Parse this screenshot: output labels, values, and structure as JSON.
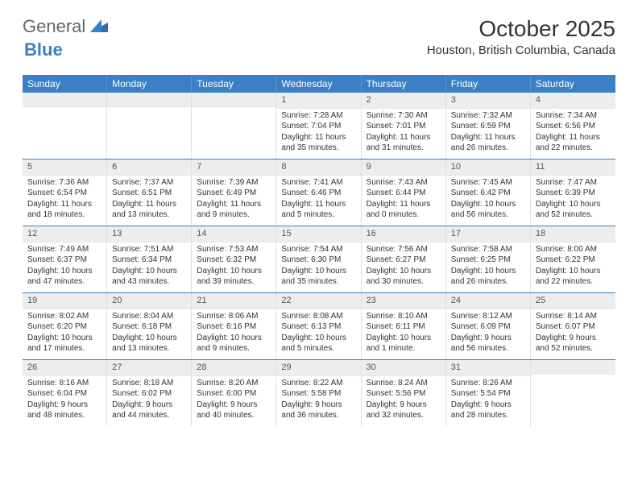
{
  "logo": {
    "part1": "General",
    "part2": "Blue"
  },
  "title": "October 2025",
  "location": "Houston, British Columbia, Canada",
  "header_bg": "#3b7fc4",
  "daynum_bg": "#ededed",
  "dayNames": [
    "Sunday",
    "Monday",
    "Tuesday",
    "Wednesday",
    "Thursday",
    "Friday",
    "Saturday"
  ],
  "weeks": [
    [
      {
        "n": "",
        "sr": "",
        "ss": "",
        "dl": ""
      },
      {
        "n": "",
        "sr": "",
        "ss": "",
        "dl": ""
      },
      {
        "n": "",
        "sr": "",
        "ss": "",
        "dl": ""
      },
      {
        "n": "1",
        "sr": "Sunrise: 7:28 AM",
        "ss": "Sunset: 7:04 PM",
        "dl": "Daylight: 11 hours and 35 minutes."
      },
      {
        "n": "2",
        "sr": "Sunrise: 7:30 AM",
        "ss": "Sunset: 7:01 PM",
        "dl": "Daylight: 11 hours and 31 minutes."
      },
      {
        "n": "3",
        "sr": "Sunrise: 7:32 AM",
        "ss": "Sunset: 6:59 PM",
        "dl": "Daylight: 11 hours and 26 minutes."
      },
      {
        "n": "4",
        "sr": "Sunrise: 7:34 AM",
        "ss": "Sunset: 6:56 PM",
        "dl": "Daylight: 11 hours and 22 minutes."
      }
    ],
    [
      {
        "n": "5",
        "sr": "Sunrise: 7:36 AM",
        "ss": "Sunset: 6:54 PM",
        "dl": "Daylight: 11 hours and 18 minutes."
      },
      {
        "n": "6",
        "sr": "Sunrise: 7:37 AM",
        "ss": "Sunset: 6:51 PM",
        "dl": "Daylight: 11 hours and 13 minutes."
      },
      {
        "n": "7",
        "sr": "Sunrise: 7:39 AM",
        "ss": "Sunset: 6:49 PM",
        "dl": "Daylight: 11 hours and 9 minutes."
      },
      {
        "n": "8",
        "sr": "Sunrise: 7:41 AM",
        "ss": "Sunset: 6:46 PM",
        "dl": "Daylight: 11 hours and 5 minutes."
      },
      {
        "n": "9",
        "sr": "Sunrise: 7:43 AM",
        "ss": "Sunset: 6:44 PM",
        "dl": "Daylight: 11 hours and 0 minutes."
      },
      {
        "n": "10",
        "sr": "Sunrise: 7:45 AM",
        "ss": "Sunset: 6:42 PM",
        "dl": "Daylight: 10 hours and 56 minutes."
      },
      {
        "n": "11",
        "sr": "Sunrise: 7:47 AM",
        "ss": "Sunset: 6:39 PM",
        "dl": "Daylight: 10 hours and 52 minutes."
      }
    ],
    [
      {
        "n": "12",
        "sr": "Sunrise: 7:49 AM",
        "ss": "Sunset: 6:37 PM",
        "dl": "Daylight: 10 hours and 47 minutes."
      },
      {
        "n": "13",
        "sr": "Sunrise: 7:51 AM",
        "ss": "Sunset: 6:34 PM",
        "dl": "Daylight: 10 hours and 43 minutes."
      },
      {
        "n": "14",
        "sr": "Sunrise: 7:53 AM",
        "ss": "Sunset: 6:32 PM",
        "dl": "Daylight: 10 hours and 39 minutes."
      },
      {
        "n": "15",
        "sr": "Sunrise: 7:54 AM",
        "ss": "Sunset: 6:30 PM",
        "dl": "Daylight: 10 hours and 35 minutes."
      },
      {
        "n": "16",
        "sr": "Sunrise: 7:56 AM",
        "ss": "Sunset: 6:27 PM",
        "dl": "Daylight: 10 hours and 30 minutes."
      },
      {
        "n": "17",
        "sr": "Sunrise: 7:58 AM",
        "ss": "Sunset: 6:25 PM",
        "dl": "Daylight: 10 hours and 26 minutes."
      },
      {
        "n": "18",
        "sr": "Sunrise: 8:00 AM",
        "ss": "Sunset: 6:22 PM",
        "dl": "Daylight: 10 hours and 22 minutes."
      }
    ],
    [
      {
        "n": "19",
        "sr": "Sunrise: 8:02 AM",
        "ss": "Sunset: 6:20 PM",
        "dl": "Daylight: 10 hours and 17 minutes."
      },
      {
        "n": "20",
        "sr": "Sunrise: 8:04 AM",
        "ss": "Sunset: 6:18 PM",
        "dl": "Daylight: 10 hours and 13 minutes."
      },
      {
        "n": "21",
        "sr": "Sunrise: 8:06 AM",
        "ss": "Sunset: 6:16 PM",
        "dl": "Daylight: 10 hours and 9 minutes."
      },
      {
        "n": "22",
        "sr": "Sunrise: 8:08 AM",
        "ss": "Sunset: 6:13 PM",
        "dl": "Daylight: 10 hours and 5 minutes."
      },
      {
        "n": "23",
        "sr": "Sunrise: 8:10 AM",
        "ss": "Sunset: 6:11 PM",
        "dl": "Daylight: 10 hours and 1 minute."
      },
      {
        "n": "24",
        "sr": "Sunrise: 8:12 AM",
        "ss": "Sunset: 6:09 PM",
        "dl": "Daylight: 9 hours and 56 minutes."
      },
      {
        "n": "25",
        "sr": "Sunrise: 8:14 AM",
        "ss": "Sunset: 6:07 PM",
        "dl": "Daylight: 9 hours and 52 minutes."
      }
    ],
    [
      {
        "n": "26",
        "sr": "Sunrise: 8:16 AM",
        "ss": "Sunset: 6:04 PM",
        "dl": "Daylight: 9 hours and 48 minutes."
      },
      {
        "n": "27",
        "sr": "Sunrise: 8:18 AM",
        "ss": "Sunset: 6:02 PM",
        "dl": "Daylight: 9 hours and 44 minutes."
      },
      {
        "n": "28",
        "sr": "Sunrise: 8:20 AM",
        "ss": "Sunset: 6:00 PM",
        "dl": "Daylight: 9 hours and 40 minutes."
      },
      {
        "n": "29",
        "sr": "Sunrise: 8:22 AM",
        "ss": "Sunset: 5:58 PM",
        "dl": "Daylight: 9 hours and 36 minutes."
      },
      {
        "n": "30",
        "sr": "Sunrise: 8:24 AM",
        "ss": "Sunset: 5:56 PM",
        "dl": "Daylight: 9 hours and 32 minutes."
      },
      {
        "n": "31",
        "sr": "Sunrise: 8:26 AM",
        "ss": "Sunset: 5:54 PM",
        "dl": "Daylight: 9 hours and 28 minutes."
      },
      {
        "n": "",
        "sr": "",
        "ss": "",
        "dl": ""
      }
    ]
  ]
}
